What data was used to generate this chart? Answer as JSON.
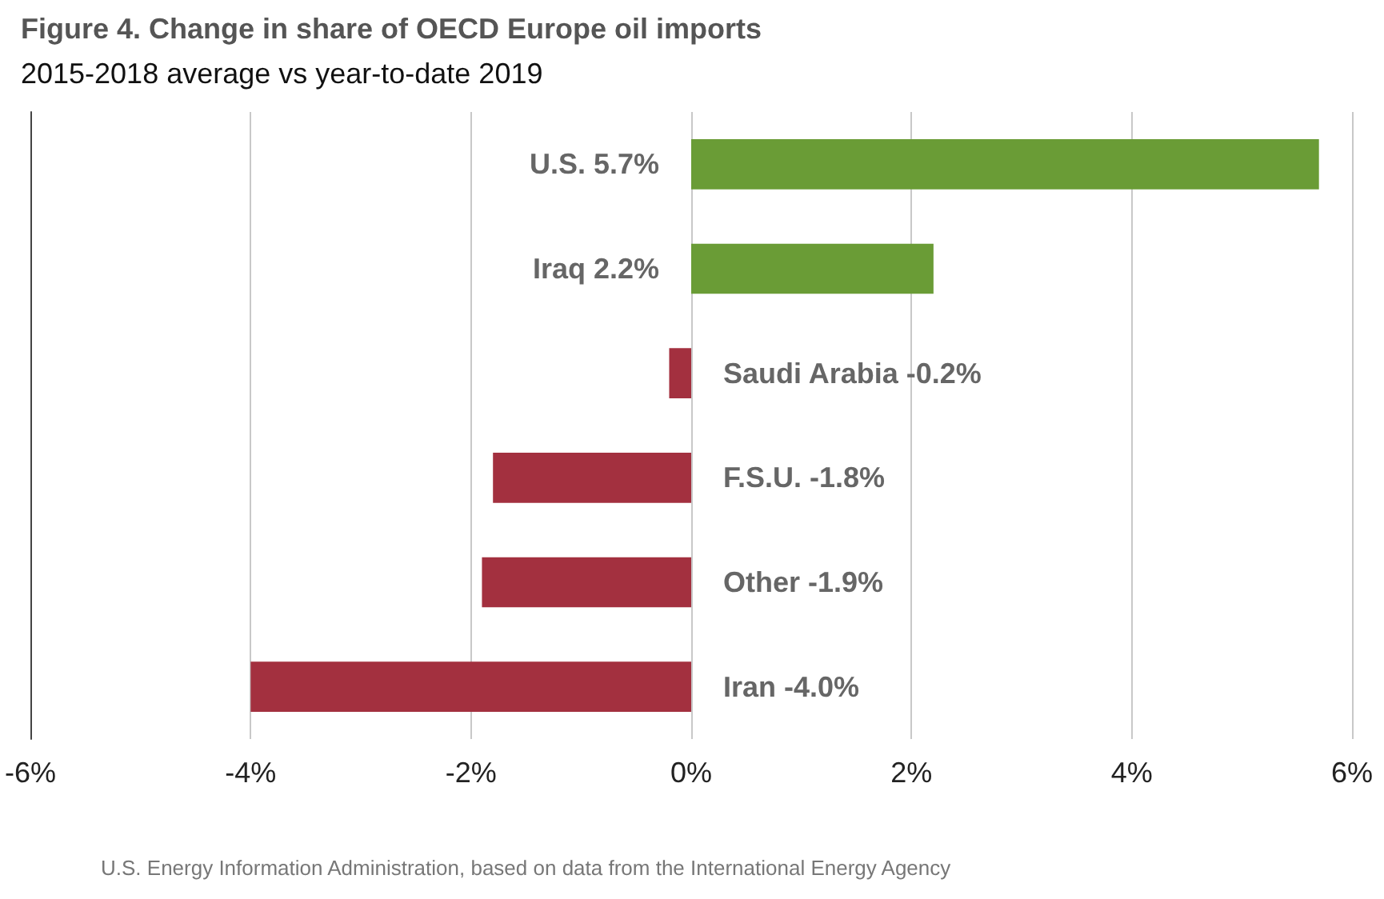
{
  "chart_data": {
    "type": "bar",
    "orientation": "horizontal",
    "title": "Figure 4. Change in share of OECD Europe oil imports",
    "subtitle": "2015-2018 average vs year-to-date 2019",
    "categories": [
      "U.S.",
      "Iraq",
      "Saudi Arabia",
      "F.S.U.",
      "Other",
      "Iran"
    ],
    "values": [
      5.7,
      2.2,
      -0.2,
      -1.8,
      -1.9,
      -4.0
    ],
    "colors": [
      "#6a9c36",
      "#6a9c36",
      "#a3303f",
      "#a3303f",
      "#a3303f",
      "#a3303f"
    ],
    "value_labels": [
      "5.7%",
      "2.2%",
      "-0.2%",
      "-1.8%",
      "-1.9%",
      "-4.0%"
    ],
    "xlim": [
      -6,
      6
    ],
    "xticks": [
      {
        "value": -6,
        "label": "-6%"
      },
      {
        "value": -4,
        "label": "-4%"
      },
      {
        "value": -2,
        "label": "-2%"
      },
      {
        "value": 0,
        "label": "0%"
      },
      {
        "value": 2,
        "label": "2%"
      },
      {
        "value": 4,
        "label": "4%"
      },
      {
        "value": 6,
        "label": "6%"
      }
    ],
    "grid": "x",
    "tick_labels": "x",
    "annotations": [
      "U.S. Energy Information Administration, based on data from the International Energy Agency"
    ]
  }
}
